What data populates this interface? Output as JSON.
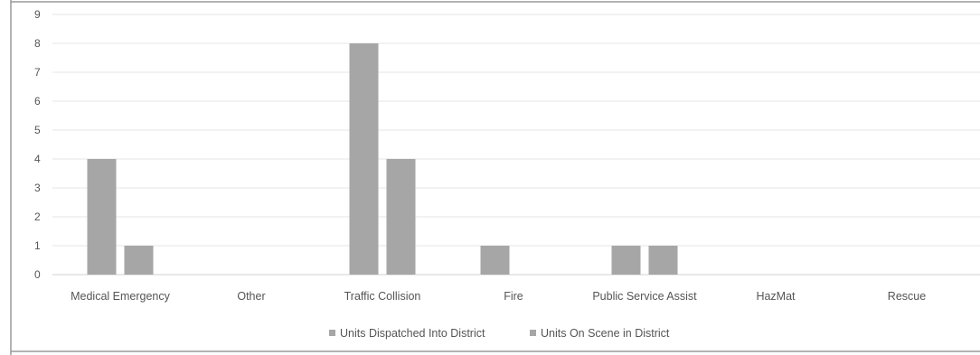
{
  "chart_data": {
    "type": "bar",
    "categories": [
      "Medical Emergency",
      "Other",
      "Traffic Collision",
      "Fire",
      "Public Service Assist",
      "HazMat",
      "Rescue"
    ],
    "series": [
      {
        "name": "Units Dispatched Into District",
        "values": [
          4,
          0,
          8,
          1,
          1,
          0,
          0
        ],
        "color": "#a6a6a6"
      },
      {
        "name": "Units On Scene in District",
        "values": [
          1,
          0,
          4,
          0,
          1,
          0,
          0
        ],
        "color": "#a6a6a6"
      }
    ],
    "ylim": [
      0,
      9
    ],
    "yticks": [
      "0",
      "1",
      "2",
      "3",
      "4",
      "5",
      "6",
      "7",
      "8",
      "9"
    ],
    "grid": true,
    "legend_position": "bottom",
    "gridline_color": "#e6e6e6",
    "axis_color": "#d0d0d0",
    "border_color": "#9a9a9a"
  }
}
